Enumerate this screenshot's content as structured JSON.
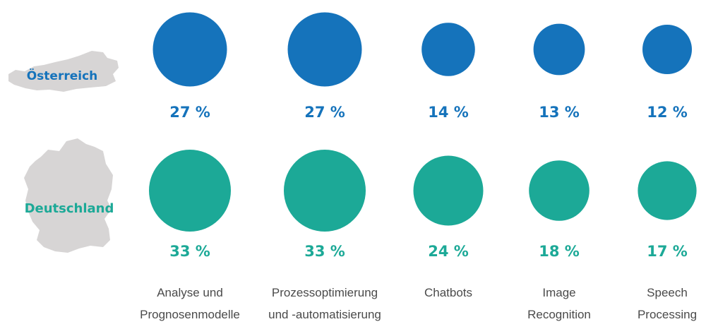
{
  "chart_data": {
    "type": "bubble",
    "categories": [
      [
        "Analyse und",
        "Prognosenmodelle"
      ],
      [
        "Prozessoptimierung",
        "und -automatisierung"
      ],
      [
        "Chatbots"
      ],
      [
        "Image",
        "Recognition"
      ],
      [
        "Speech",
        "Processing"
      ]
    ],
    "series": [
      {
        "name": "Österreich",
        "values": [
          27,
          27,
          14,
          13,
          12
        ],
        "labels": [
          "27 %",
          "27 %",
          "14 %",
          "13 %",
          "12 %"
        ]
      },
      {
        "name": "Deutschland",
        "values": [
          33,
          33,
          24,
          18,
          17
        ],
        "labels": [
          "33 %",
          "33 %",
          "24 %",
          "18 %",
          "17 %"
        ]
      }
    ],
    "colors": {
      "oesterreich": "#1573bb",
      "deutschland": "#1ca997",
      "map": "#d7d5d5",
      "category_text": "#4a4a4a"
    }
  }
}
